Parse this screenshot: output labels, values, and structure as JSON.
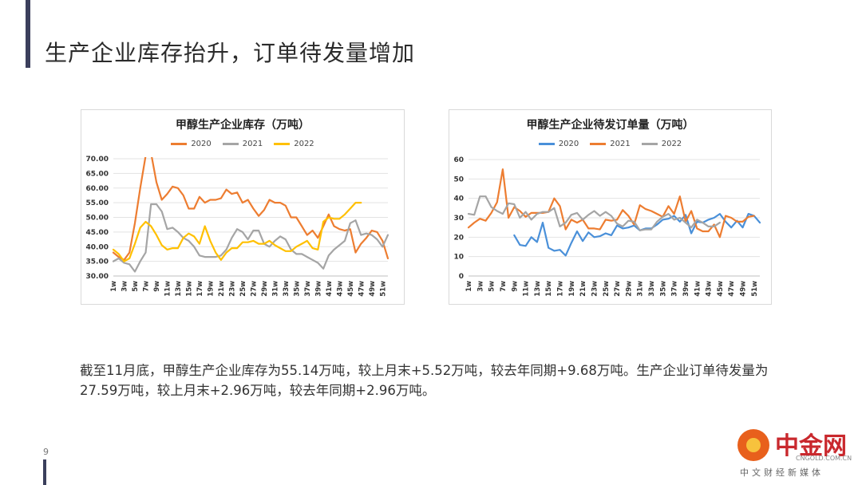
{
  "slide": {
    "title": "生产企业库存抬升，订单待发量增加",
    "body": "截至11月底，甲醇生产企业库存为55.14万吨，较上月末+5.52万吨，较去年同期+9.68万吨。生产企业订单待发量为27.59万吨，较上月末+2.96万吨，较去年同期+2.96万吨。",
    "page_number": "9"
  },
  "logo": {
    "name": "中金网",
    "url": "CNGOLD.COM.CN",
    "tagline": "中文财经新媒体"
  },
  "charts": {
    "inventory": {
      "title": "甲醇生产企业库存（万吨）",
      "legend": [
        "2020",
        "2021",
        "2022"
      ]
    },
    "orders": {
      "title": "甲醇生产企业待发订单量（万吨）",
      "legend": [
        "2020",
        "2021",
        "2022"
      ]
    }
  },
  "chart_data": [
    {
      "type": "line",
      "title": "甲醇生产企业库存（万吨）",
      "x": [
        "1w",
        "2w",
        "3w",
        "4w",
        "5w",
        "6w",
        "7w",
        "8w",
        "9w",
        "10w",
        "11w",
        "12w",
        "13w",
        "14w",
        "15w",
        "16w",
        "17w",
        "18w",
        "19w",
        "20w",
        "21w",
        "22w",
        "23w",
        "24w",
        "25w",
        "26w",
        "27w",
        "28w",
        "29w",
        "30w",
        "31w",
        "32w",
        "33w",
        "34w",
        "35w",
        "36w",
        "37w",
        "38w",
        "39w",
        "40w",
        "41w",
        "42w",
        "43w",
        "44w",
        "45w",
        "46w",
        "47w",
        "48w",
        "49w",
        "50w",
        "51w",
        "52w"
      ],
      "xticks": [
        "1w",
        "3w",
        "5w",
        "7w",
        "9w",
        "11w",
        "13w",
        "15w",
        "17w",
        "19w",
        "21w",
        "23w",
        "25w",
        "27w",
        "29w",
        "31w",
        "33w",
        "35w",
        "37w",
        "39w",
        "41w",
        "43w",
        "45w",
        "47w",
        "49w",
        "51w"
      ],
      "ylim": [
        30,
        70
      ],
      "yticks": [
        "30.00",
        "35.00",
        "40.00",
        "45.00",
        "50.00",
        "55.00",
        "60.00",
        "65.00",
        "70.00"
      ],
      "legend_position": "top",
      "series": [
        {
          "name": "2020",
          "color": "#ed7d31",
          "values": [
            38,
            36.5,
            35.5,
            38,
            48,
            60,
            71,
            72,
            62,
            56,
            58,
            60.5,
            60,
            57.5,
            53,
            53,
            57,
            55,
            56,
            56,
            56.5,
            59.5,
            58,
            58.5,
            55,
            56,
            53,
            50.5,
            52.5,
            56,
            55,
            55,
            54,
            50,
            50,
            47,
            44,
            45.5,
            43,
            47,
            51,
            47,
            46,
            45.5,
            46,
            38,
            41,
            43,
            45.5,
            45,
            42,
            36
          ]
        },
        {
          "name": "2021",
          "color": "#a5a5a5",
          "values": [
            35,
            36,
            34.5,
            34,
            31.5,
            35,
            38,
            54.5,
            54.5,
            52,
            46,
            46.5,
            45,
            43,
            42,
            40,
            37,
            36.5,
            36.5,
            36.5,
            37,
            39,
            43,
            46,
            45,
            42.5,
            45.5,
            45.5,
            41,
            40,
            42,
            43.5,
            42.5,
            39,
            37.5,
            37.5,
            36.5,
            35.5,
            34.5,
            32.5,
            37,
            39,
            40.5,
            42,
            48,
            49,
            44,
            44.5,
            44,
            42.5,
            40,
            44
          ]
        },
        {
          "name": "2022",
          "color": "#ffc000",
          "values": [
            39,
            37.5,
            35,
            36,
            41,
            46.5,
            48.5,
            47,
            44,
            40.5,
            39,
            39.5,
            39.5,
            43,
            44.5,
            43.5,
            41,
            47,
            42,
            38,
            35.5,
            38,
            39.5,
            39.5,
            41.5,
            41.5,
            42,
            41,
            41,
            42,
            40.5,
            39.5,
            38.5,
            38.5,
            40,
            41,
            42,
            39.5,
            39,
            48.5,
            50,
            49.5,
            49.5,
            51,
            53,
            55,
            55,
            null,
            null,
            null,
            null,
            null
          ]
        }
      ]
    },
    {
      "type": "line",
      "title": "甲醇生产企业待发订单量（万吨）",
      "x": [
        "1w",
        "2w",
        "3w",
        "4w",
        "5w",
        "6w",
        "7w",
        "8w",
        "9w",
        "10w",
        "11w",
        "12w",
        "13w",
        "14w",
        "15w",
        "16w",
        "17w",
        "18w",
        "19w",
        "20w",
        "21w",
        "22w",
        "23w",
        "24w",
        "25w",
        "26w",
        "27w",
        "28w",
        "29w",
        "30w",
        "31w",
        "32w",
        "33w",
        "34w",
        "35w",
        "36w",
        "37w",
        "38w",
        "39w",
        "40w",
        "41w",
        "42w",
        "43w",
        "44w",
        "45w",
        "46w",
        "47w",
        "48w",
        "49w",
        "50w",
        "51w",
        "52w"
      ],
      "xticks": [
        "1w",
        "3w",
        "5w",
        "7w",
        "9w",
        "11w",
        "13w",
        "15w",
        "17w",
        "19w",
        "21w",
        "23w",
        "25w",
        "27w",
        "29w",
        "31w",
        "33w",
        "35w",
        "37w",
        "39w",
        "41w",
        "43w",
        "45w",
        "47w",
        "49w",
        "51w"
      ],
      "ylim": [
        0,
        60
      ],
      "yticks": [
        "0",
        "10",
        "20",
        "30",
        "40",
        "50",
        "60"
      ],
      "legend_position": "top",
      "series": [
        {
          "name": "2020",
          "color": "#4a90d9",
          "values": [
            null,
            null,
            null,
            null,
            null,
            null,
            null,
            null,
            21,
            16,
            15.5,
            20,
            17.5,
            27.5,
            14.5,
            13,
            13.5,
            10.5,
            17,
            23,
            18,
            22.5,
            20,
            20.5,
            22,
            21,
            26,
            24.5,
            25,
            26,
            23.5,
            24.5,
            24.5,
            26.5,
            29,
            29.5,
            31,
            28,
            31.5,
            22,
            28,
            27.5,
            29,
            30,
            32,
            28,
            25,
            28.5,
            25,
            32,
            31,
            27.5
          ]
        },
        {
          "name": "2021",
          "color": "#ed7d31",
          "values": [
            25,
            27.5,
            29.5,
            28.5,
            32.5,
            38,
            55,
            30,
            35.5,
            33.5,
            30.5,
            32.5,
            32.5,
            32.5,
            33,
            40,
            36,
            24,
            29,
            27.5,
            29,
            24.5,
            24.5,
            24,
            29,
            28.5,
            29,
            34,
            31,
            26.5,
            36.5,
            34.5,
            33.5,
            32,
            30.5,
            36,
            32,
            41,
            28,
            33.5,
            24.5,
            23,
            23,
            26.5,
            20,
            31,
            30,
            28,
            28,
            30.5,
            31,
            null
          ]
        },
        {
          "name": "2022",
          "color": "#a5a5a5",
          "values": [
            32,
            31.5,
            41,
            41,
            35.5,
            33.5,
            32,
            37.5,
            37,
            30,
            33,
            29,
            32,
            33,
            33,
            35,
            25.5,
            27.5,
            31.5,
            32.5,
            29,
            31.5,
            33.5,
            31,
            33,
            31,
            27,
            25.5,
            28.5,
            28,
            23.5,
            24,
            24,
            28,
            30.5,
            32,
            29,
            30,
            27.5,
            25,
            29,
            27.5,
            25.5,
            25.5,
            27.5,
            null,
            null,
            null,
            null,
            null,
            null,
            null
          ]
        }
      ]
    }
  ]
}
